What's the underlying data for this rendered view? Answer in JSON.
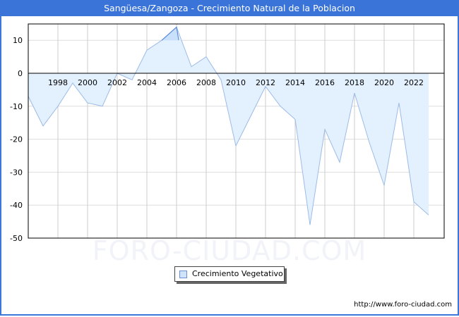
{
  "title": "Sangüesa/Zangoza - Crecimiento Natural de la Poblacion",
  "watermark": "FORO-CIUDAD.COM",
  "legend": {
    "label": "Crecimiento Vegetativo"
  },
  "footer": {
    "url": "http://www.foro-ciudad.com"
  },
  "colors": {
    "title_bg": "#3a74d8",
    "area_fill": "#e3f0fd",
    "line": "#9dbbe8",
    "grid": "#dddddd"
  },
  "chart_data": {
    "type": "area",
    "title": "Sangüesa/Zangoza - Crecimiento Natural de la Poblacion",
    "xlabel": "",
    "ylabel": "",
    "ylim": [
      -50,
      15
    ],
    "yticks": [
      10,
      0,
      -10,
      -20,
      -30,
      -40,
      -50
    ],
    "xticks": [
      1998,
      2000,
      2002,
      2004,
      2006,
      2008,
      2010,
      2012,
      2014,
      2016,
      2018,
      2020,
      2022
    ],
    "grid": true,
    "legend_position": "bottom",
    "x": [
      1996,
      1997,
      1998,
      1999,
      2000,
      2001,
      2002,
      2003,
      2004,
      2005,
      2006,
      2007,
      2008,
      2009,
      2010,
      2011,
      2012,
      2013,
      2014,
      2015,
      2016,
      2017,
      2018,
      2019,
      2020,
      2021,
      2022,
      2023
    ],
    "series": [
      {
        "name": "Crecimiento Vegetativo",
        "values": [
          -7,
          -16,
          -10,
          -3,
          -9,
          -10,
          0,
          -2,
          7,
          10,
          14,
          2,
          5,
          -2,
          -22,
          -13,
          -4,
          -10,
          -14,
          -46,
          -17,
          -27,
          -6,
          -21,
          -34,
          -9,
          -39,
          -43
        ]
      }
    ]
  }
}
